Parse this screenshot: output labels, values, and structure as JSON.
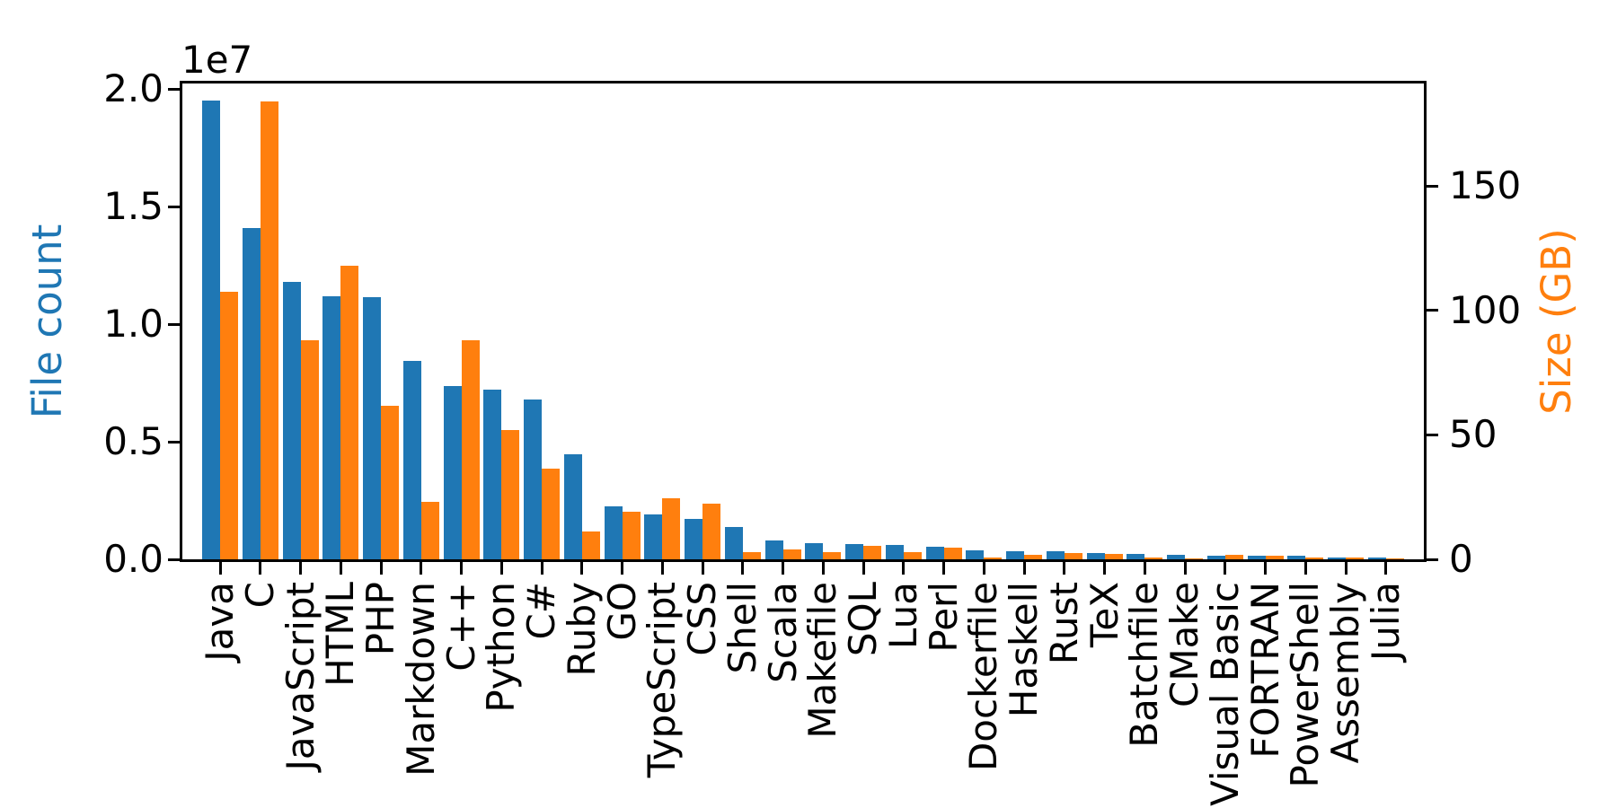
{
  "figure": {
    "background": "#ffffff",
    "offset_text": "1e7"
  },
  "chart_data": {
    "type": "bar",
    "title": "",
    "xlabel": "",
    "ylabel_left": "File count",
    "ylabel_right": "Size (GB)",
    "left_color": "#1f77b4",
    "right_color": "#ff7f0e",
    "grid": false,
    "legend": "none",
    "left_offset_text": "1e7",
    "ylim_left": [
      0,
      20230000
    ],
    "ylim_right": [
      0,
      191.1
    ],
    "left_axis_ticks": {
      "labels": [
        "0.0",
        "0.5",
        "1.0",
        "1.5",
        "2.0"
      ],
      "values": [
        0,
        5000000,
        10000000,
        15000000,
        20000000
      ]
    },
    "right_axis_ticks": {
      "labels": [
        "0",
        "50",
        "100",
        "150"
      ],
      "values": [
        0,
        50,
        100,
        150
      ]
    },
    "categories": [
      "Java",
      "C",
      "JavaScript",
      "HTML",
      "PHP",
      "Markdown",
      "C++",
      "Python",
      "C#",
      "Ruby",
      "GO",
      "TypeScript",
      "CSS",
      "Shell",
      "Scala",
      "Makefile",
      "SQL",
      "Lua",
      "Perl",
      "Dockerfile",
      "Haskell",
      "Rust",
      "TeX",
      "Batchfile",
      "CMake",
      "Visual Basic",
      "FORTRAN",
      "PowerShell",
      "Assembly",
      "Julia"
    ],
    "series": [
      {
        "name": "File count",
        "axis": "left",
        "color": "#1f77b4",
        "values": [
          19500000,
          14100000,
          11800000,
          11200000,
          11150000,
          8450000,
          7350000,
          7200000,
          6800000,
          4480000,
          2250000,
          1920000,
          1720000,
          1380000,
          820000,
          670000,
          660000,
          600000,
          520000,
          370000,
          350000,
          330000,
          250000,
          240000,
          175000,
          160000,
          140000,
          140000,
          85000,
          60000
        ]
      },
      {
        "name": "Size (GB)",
        "axis": "right",
        "color": "#ff7f0e",
        "values": [
          107.5,
          184,
          88,
          118,
          61.5,
          23,
          88,
          52,
          36.5,
          11,
          19,
          24.5,
          22.5,
          3,
          3.9,
          2.9,
          5.5,
          2.8,
          4.7,
          0.7,
          1.9,
          2.7,
          2.1,
          0.7,
          0.5,
          1.9,
          1.6,
          0.7,
          0.8,
          0.3
        ]
      }
    ]
  }
}
